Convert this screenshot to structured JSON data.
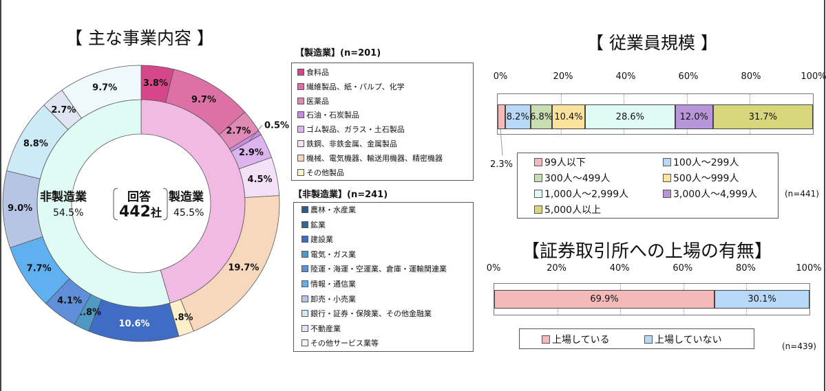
{
  "donut": {
    "title": "【 主な事業内容 】",
    "center": {
      "label": "回答",
      "count": "442",
      "unit": "社"
    },
    "inner_labels": {
      "nonmanufacturing": {
        "name": "非製造業",
        "pct": "54.5%"
      },
      "manufacturing": {
        "name": "製造業",
        "pct": "45.5%"
      }
    }
  },
  "legend_manufacturing": {
    "heading": "【製造業】(n=201)",
    "items": [
      {
        "label": "食料品",
        "color": "#d6478a"
      },
      {
        "label": "繊維製品、紙・パルプ、化学",
        "color": "#dd70a5"
      },
      {
        "label": "医薬品",
        "color": "#e08bb6"
      },
      {
        "label": "石油・石炭製品",
        "color": "#c98ae0"
      },
      {
        "label": "ゴム製品、ガラス・土石製品",
        "color": "#dcb5ef"
      },
      {
        "label": "鉄鋼、非鉄金属、金属製品",
        "color": "#f3e1f7"
      },
      {
        "label": "機械、電気機器、輸送用機器、精密機器",
        "color": "#f7d8bd"
      },
      {
        "label": "その他製品",
        "color": "#fdefc9"
      }
    ]
  },
  "legend_nonmanufacturing": {
    "heading": "【非製造業】(n=241)",
    "items": [
      {
        "label": "農林・水産業",
        "color": "#2f5a8c"
      },
      {
        "label": "鉱業",
        "color": "#36668f"
      },
      {
        "label": "建設業",
        "color": "#3f6cc4"
      },
      {
        "label": "電気・ガス業",
        "color": "#4f9ac4"
      },
      {
        "label": "陸運・海運・空運業、倉庫・運輸関連業",
        "color": "#5f8fd8"
      },
      {
        "label": "情報・通信業",
        "color": "#5fb0ef"
      },
      {
        "label": "卸売・小売業",
        "color": "#b5c5e3"
      },
      {
        "label": "銀行・証券・保険業、その他金融業",
        "color": "#cdebf7"
      },
      {
        "label": "不動産業",
        "color": "#dfe6f2"
      },
      {
        "label": "その他サービス業等",
        "color": "#eef8fd"
      }
    ]
  },
  "employees": {
    "title": "【 従業員規模 】",
    "ticks": [
      "0%",
      "20%",
      "40%",
      "60%",
      "80%",
      "100%"
    ],
    "n": "(n=441)",
    "small_label": "2.3%",
    "legend": [
      {
        "label": "99人以下",
        "color": "#f4b9b9"
      },
      {
        "label": "100人～299人",
        "color": "#b8d8f8"
      },
      {
        "label": "300人～499人",
        "color": "#c9ddb3"
      },
      {
        "label": "500人～999人",
        "color": "#fbe39d"
      },
      {
        "label": "1,000人～2,999人",
        "color": "#e0faf4"
      },
      {
        "label": "3,000人～4,999人",
        "color": "#b894d9"
      },
      {
        "label": "5,000人以上",
        "color": "#d8d67a"
      }
    ]
  },
  "listing": {
    "title": "【証券取引所への上場の有無】",
    "ticks": [
      "0%",
      "20%",
      "40%",
      "60%",
      "80%",
      "100%"
    ],
    "n": "(n=439)",
    "legend": [
      {
        "label": "上場している",
        "color": "#f4b9b9"
      },
      {
        "label": "上場していない",
        "color": "#b8d8f8"
      }
    ]
  },
  "chart_data": [
    {
      "type": "pie",
      "title": "【 主な事業内容 】",
      "subtitle": "回答 442社",
      "inner_ring": {
        "categories": [
          "製造業",
          "非製造業"
        ],
        "values": [
          45.5,
          54.5
        ],
        "colors": [
          "#f2b9e4",
          "#e0faf4"
        ]
      },
      "outer_ring": {
        "categories": [
          "食料品",
          "繊維製品、紙・パルプ、化学",
          "医薬品",
          "石油・石炭製品",
          "ゴム製品、ガラス・土石製品",
          "鉄鋼、非鉄金属、金属製品",
          "機械、電気機器、輸送用機器、精密機器",
          "その他製品",
          "建設業",
          "電気・ガス業",
          "陸運・海運・空運業、倉庫・運輸関連業",
          "情報・通信業",
          "卸売・小売業",
          "銀行・証券・保険業、その他金融業",
          "不動産業",
          "その他サービス業等"
        ],
        "values": [
          3.8,
          9.7,
          2.7,
          0.5,
          2.9,
          4.5,
          19.7,
          1.8,
          10.6,
          1.8,
          4.1,
          7.7,
          9.0,
          8.8,
          2.7,
          9.7
        ],
        "labels": [
          "3.8%",
          "9.7%",
          "2.7%",
          "0.5%",
          "2.9%",
          "4.5%",
          "19.7%",
          "1.8%",
          "10.6%",
          "1.8%",
          "4.1%",
          "7.7%",
          "9.0%",
          "8.8%",
          "2.7%",
          "9.7%"
        ],
        "colors": [
          "#d6478a",
          "#dd70a5",
          "#e08bb6",
          "#c98ae0",
          "#dcb5ef",
          "#f3e1f7",
          "#f7d8bd",
          "#fdefc9",
          "#3f6cc4",
          "#4f9ac4",
          "#5f8fd8",
          "#5fb0ef",
          "#b5c5e3",
          "#cdebf7",
          "#dfe6f2",
          "#eef8fd"
        ]
      },
      "legend_position": "right"
    },
    {
      "type": "bar",
      "orientation": "horizontal-stacked",
      "title": "【 従業員規模 】",
      "categories": [
        "99人以下",
        "100人～299人",
        "300人～499人",
        "500人～999人",
        "1,000人～2,999人",
        "3,000人～4,999人",
        "5,000人以上"
      ],
      "values": [
        2.3,
        8.2,
        6.8,
        10.4,
        28.6,
        12.0,
        31.7
      ],
      "xlim": [
        0,
        100
      ],
      "xticks": [
        "0%",
        "20%",
        "40%",
        "60%",
        "80%",
        "100%"
      ],
      "grid": true,
      "legend_position": "bottom",
      "n": 441
    },
    {
      "type": "bar",
      "orientation": "horizontal-stacked",
      "title": "【証券取引所への上場の有無】",
      "categories": [
        "上場している",
        "上場していない"
      ],
      "values": [
        69.9,
        30.1
      ],
      "xlim": [
        0,
        100
      ],
      "xticks": [
        "0%",
        "20%",
        "40%",
        "60%",
        "80%",
        "100%"
      ],
      "grid": true,
      "legend_position": "bottom",
      "n": 439
    }
  ]
}
